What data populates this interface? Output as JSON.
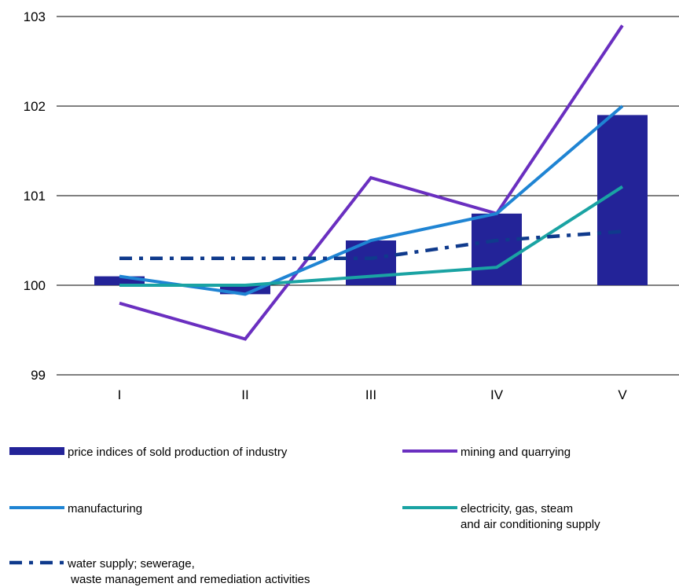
{
  "chart_data": {
    "type": "bar",
    "categories": [
      "I",
      "II",
      "III",
      "IV",
      "V"
    ],
    "ylim": [
      99,
      103
    ],
    "yticks": [
      99,
      100,
      101,
      102,
      103
    ],
    "grid": true,
    "legend_position": "bottom",
    "bar_baseline": 100,
    "series": [
      {
        "name": "price indices of sold production of industry",
        "kind": "bar",
        "color": "#232398",
        "values": [
          100.1,
          99.9,
          100.5,
          100.8,
          101.9
        ]
      },
      {
        "name": "mining and quarrying",
        "kind": "line",
        "style": "solid",
        "color": "#6a2fc0",
        "values": [
          99.8,
          99.4,
          101.2,
          100.8,
          102.9
        ]
      },
      {
        "name": "manufacturing",
        "kind": "line",
        "style": "solid",
        "color": "#1f84d3",
        "values": [
          100.1,
          99.9,
          100.5,
          100.8,
          102.0
        ]
      },
      {
        "name": "electricity, gas, steam and air conditioning supply",
        "name_lines": [
          "electricity, gas, steam",
          "and air conditioning supply"
        ],
        "kind": "line",
        "style": "solid",
        "color": "#1aa3a3",
        "values": [
          100.0,
          100.0,
          100.1,
          100.2,
          101.1
        ]
      },
      {
        "name": "water supply; sewerage, waste management and remediation activities",
        "name_lines": [
          "water supply; sewerage,",
          " waste management and remediation activities"
        ],
        "kind": "line",
        "style": "dashdot",
        "color": "#0f3a8c",
        "values": [
          100.3,
          100.3,
          100.3,
          100.5,
          100.6
        ]
      }
    ]
  }
}
